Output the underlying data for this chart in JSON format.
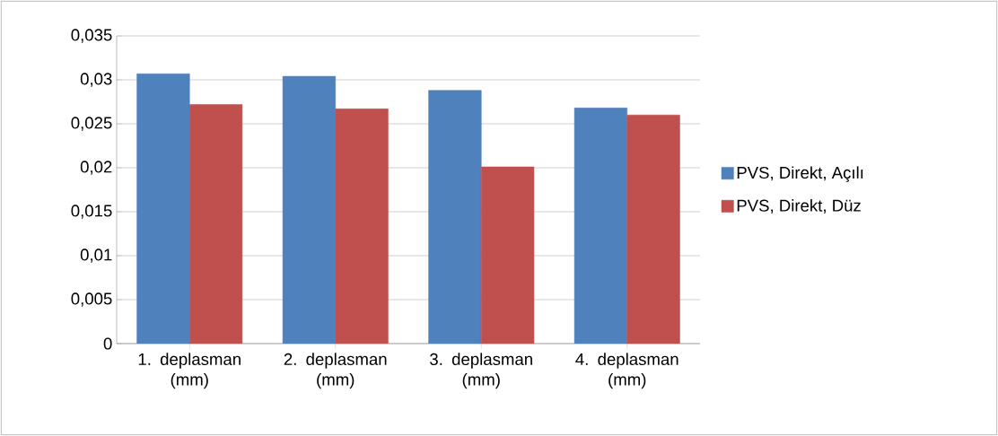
{
  "chart_data": {
    "type": "bar",
    "categories": [
      "1. deplasman (mm)",
      "2. deplasman (mm)",
      "3. deplasman (mm)",
      "4. deplasman (mm)"
    ],
    "series": [
      {
        "name": "PVS, Direkt, Açılı",
        "color": "#4f81bd",
        "values": [
          0.0307,
          0.0304,
          0.0288,
          0.0268
        ]
      },
      {
        "name": "PVS, Direkt, Düz",
        "color": "#c0504d",
        "values": [
          0.0272,
          0.0267,
          0.0201,
          0.026
        ]
      }
    ],
    "ylim": [
      0,
      0.035
    ],
    "yticks": [
      {
        "value": 0,
        "label": "0"
      },
      {
        "value": 0.005,
        "label": "0,005"
      },
      {
        "value": 0.01,
        "label": "0,01"
      },
      {
        "value": 0.015,
        "label": "0,015"
      },
      {
        "value": 0.02,
        "label": "0,02"
      },
      {
        "value": 0.025,
        "label": "0,025"
      },
      {
        "value": 0.03,
        "label": "0,03"
      },
      {
        "value": 0.035,
        "label": "0,035"
      }
    ],
    "grid": "y",
    "legend": "right"
  }
}
